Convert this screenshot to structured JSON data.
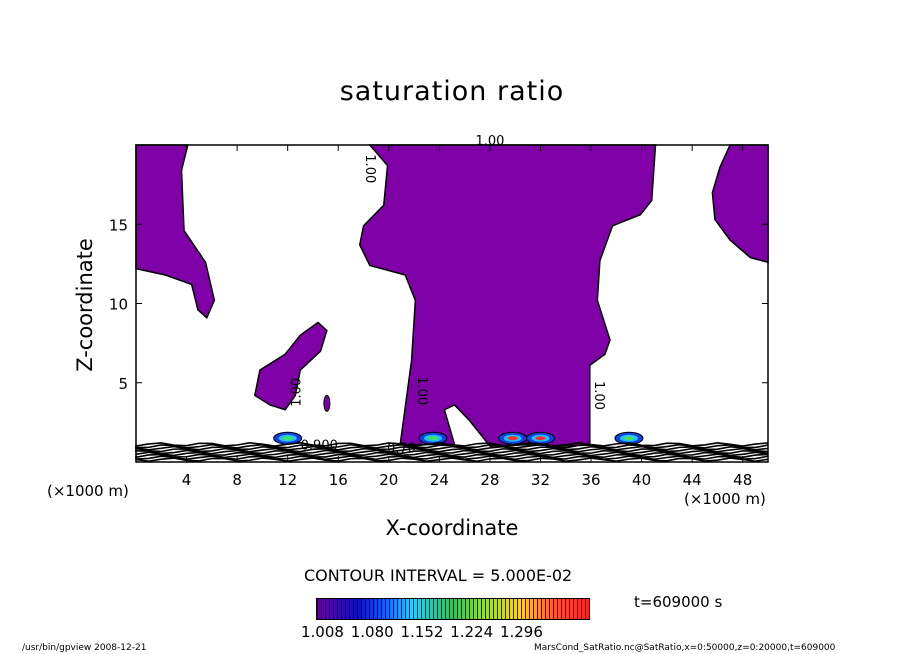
{
  "chart_data": {
    "type": "contour",
    "title": "saturation ratio",
    "xlabel": "X-coordinate",
    "ylabel": "Z-coordinate",
    "x_unit_label": "(×1000 m)",
    "xlim": [
      0,
      50
    ],
    "ylim": [
      0,
      20
    ],
    "xticks": [
      4,
      8,
      12,
      16,
      20,
      24,
      28,
      32,
      36,
      40,
      44,
      48
    ],
    "yticks": [
      5,
      10,
      15
    ],
    "contour_interval_label": "CONTOUR INTERVAL = 5.000E-02",
    "contour_labels": [
      "1.00",
      "1.00",
      "1.00",
      "1.00",
      "1.00",
      "0.900",
      "0.70"
    ],
    "fill_color": "#8000a8",
    "regions_s_ge_1": [
      [
        [
          0,
          20
        ],
        [
          4.1,
          20
        ],
        [
          3.6,
          18.4
        ],
        [
          3.8,
          14.6
        ],
        [
          5.5,
          12.6
        ],
        [
          6.2,
          10.2
        ],
        [
          5.6,
          9.1
        ],
        [
          4.9,
          9.6
        ],
        [
          4.4,
          11.2
        ],
        [
          2.3,
          11.8
        ],
        [
          0,
          12.2
        ]
      ],
      [
        [
          18.5,
          20
        ],
        [
          41.1,
          20
        ],
        [
          40.8,
          16.5
        ],
        [
          39.9,
          15.6
        ],
        [
          37.7,
          14.9
        ],
        [
          36.7,
          12.7
        ],
        [
          36.5,
          10.2
        ],
        [
          37.5,
          7.7
        ],
        [
          37.1,
          6.8
        ],
        [
          35.9,
          6.1
        ],
        [
          35.9,
          1.1
        ],
        [
          33.9,
          1.0
        ],
        [
          31.2,
          1.1
        ],
        [
          28,
          1.0
        ],
        [
          26.4,
          2.6
        ],
        [
          25.2,
          3.6
        ],
        [
          24.4,
          3.3
        ],
        [
          25.2,
          1.1
        ],
        [
          20.9,
          1.1
        ],
        [
          21.8,
          6.4
        ],
        [
          22.1,
          10.2
        ],
        [
          21.3,
          11.8
        ],
        [
          18.5,
          12.4
        ],
        [
          17.7,
          13.7
        ],
        [
          18,
          14.9
        ],
        [
          19.6,
          16.2
        ],
        [
          19.9,
          18.7
        ]
      ],
      [
        [
          47,
          20
        ],
        [
          50,
          20
        ],
        [
          50,
          12.6
        ],
        [
          48.6,
          12.9
        ],
        [
          47,
          14
        ],
        [
          45.8,
          15.3
        ],
        [
          45.6,
          17
        ],
        [
          46.2,
          18.6
        ]
      ],
      [
        [
          9.4,
          4.2
        ],
        [
          9.8,
          5.8
        ],
        [
          11.8,
          6.8
        ],
        [
          13,
          8
        ],
        [
          14.4,
          8.8
        ],
        [
          15.1,
          8.3
        ],
        [
          14.6,
          7
        ],
        [
          13,
          5.8
        ],
        [
          12.6,
          4.2
        ],
        [
          11.8,
          3.3
        ],
        [
          10.6,
          3.6
        ]
      ]
    ],
    "peaks": [
      [
        23.5,
        1.5,
        1.2
      ],
      [
        29.8,
        1.5,
        1.25
      ],
      [
        32,
        1.5,
        1.3
      ],
      [
        39,
        1.5,
        1.1
      ],
      [
        12,
        1.5,
        1.05
      ]
    ],
    "colorbar": {
      "ticks": [
        "1.008",
        "1.080",
        "1.152",
        "1.224",
        "1.296"
      ]
    },
    "time_label": "t=609000 s"
  },
  "footer": {
    "left": "/usr/bin/gpview   2008-12-21",
    "right": "MarsCond_SatRatio.nc@SatRatio,x=0:50000,z=0:20000,t=609000"
  }
}
